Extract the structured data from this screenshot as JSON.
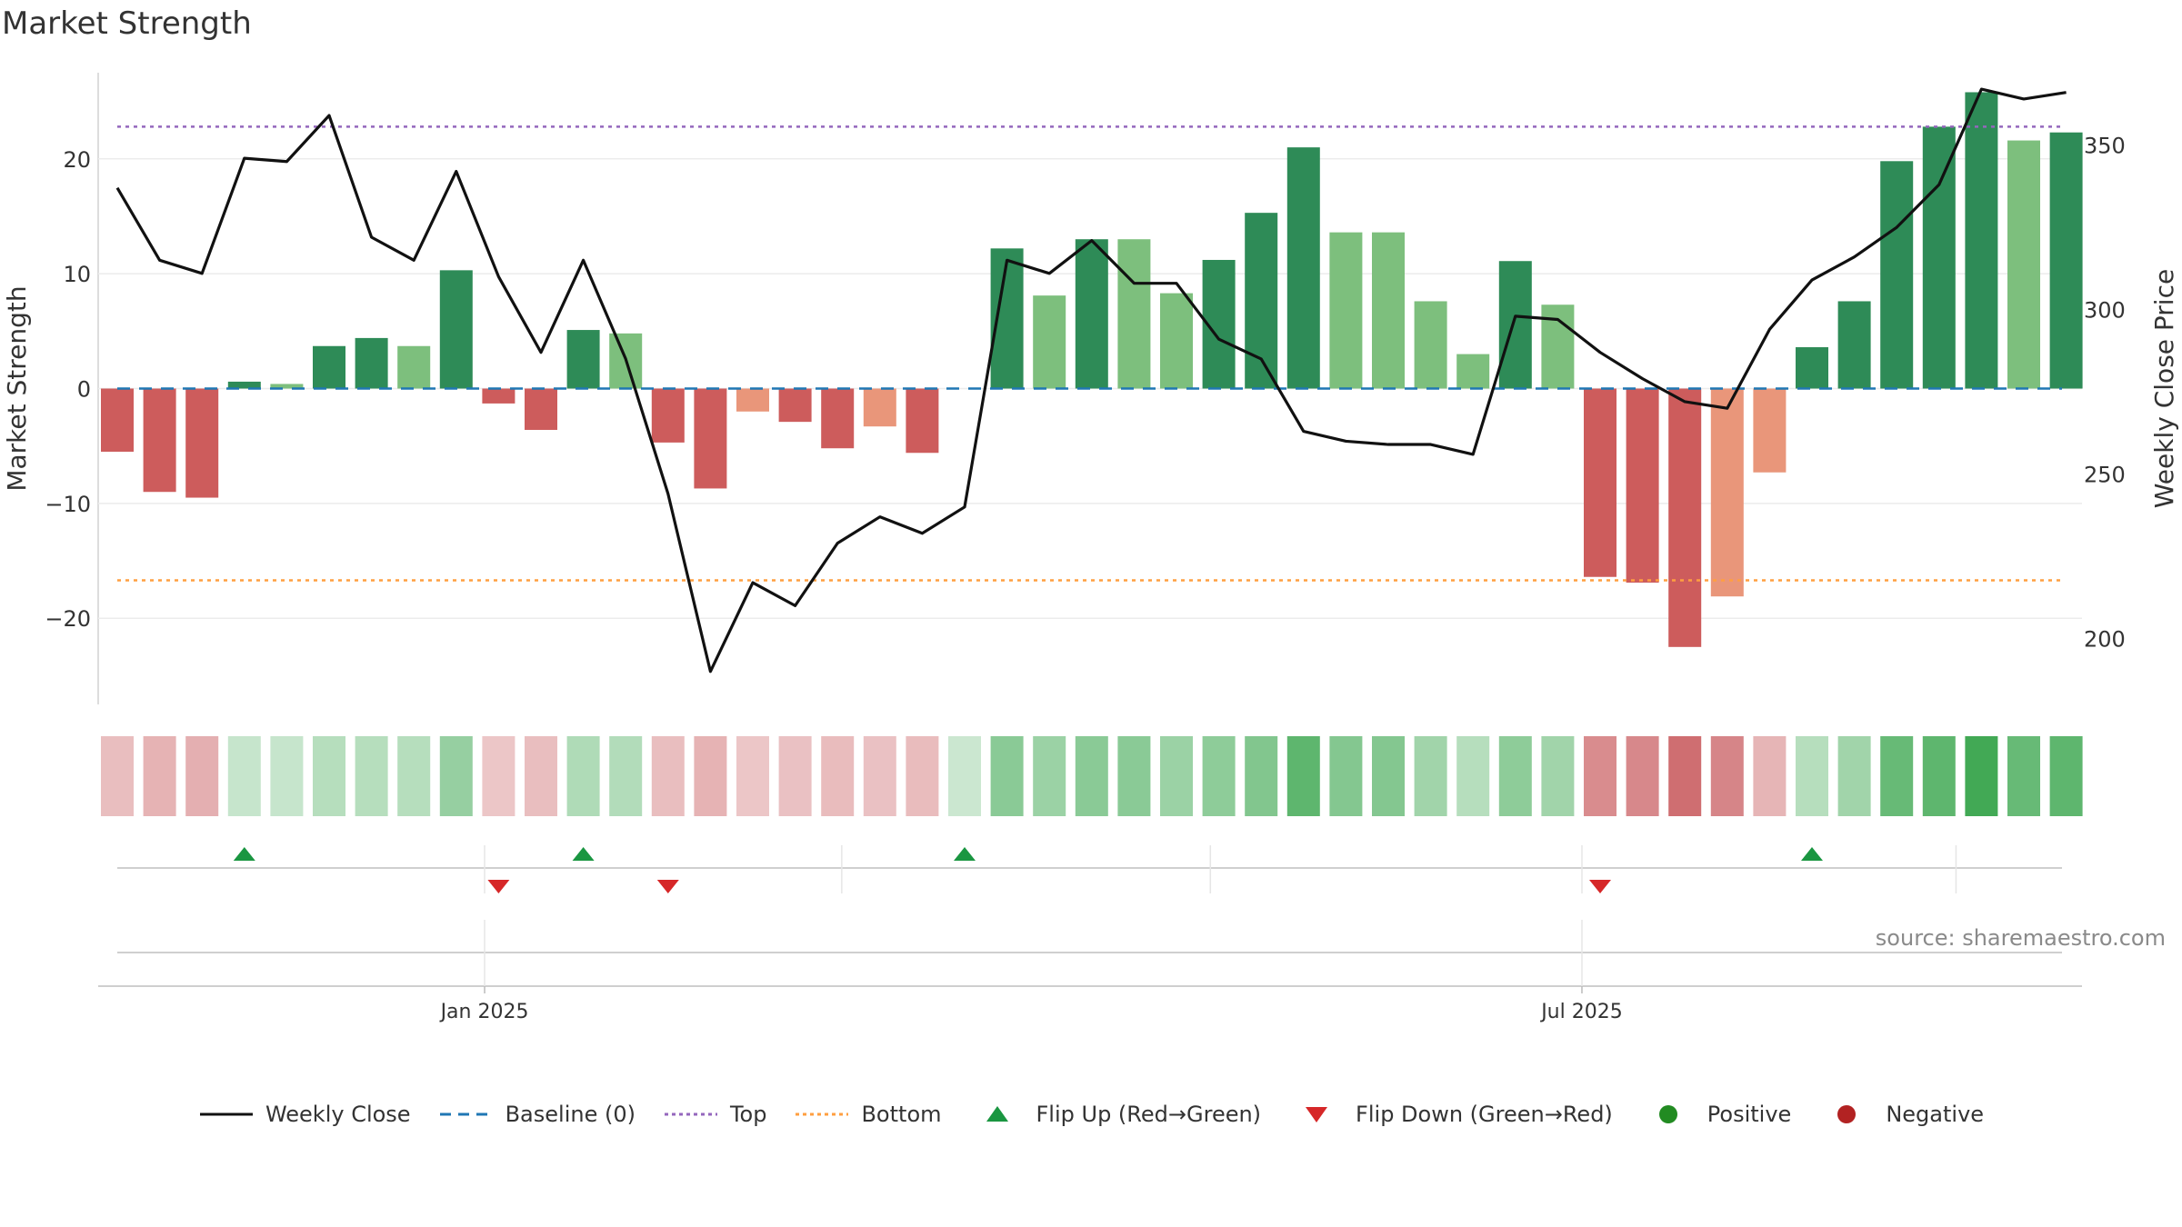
{
  "title": "Market Strength",
  "source": "source: sharemaestro.com",
  "colors": {
    "strong_green": "#2e8b57",
    "light_green": "#7dbf7d",
    "strong_red": "#cd5c5c",
    "light_red": "#e9967a",
    "line": "#111111",
    "baseline": "#1f77b4",
    "top": "#9467bd",
    "bottom": "#ff9f40",
    "flip_up": "#1a9641",
    "flip_down": "#d62728",
    "positive": "#228b22",
    "negative": "#b22222"
  },
  "legend": [
    {
      "key": "line",
      "label": "Weekly Close"
    },
    {
      "key": "baseline",
      "label": "Baseline (0)"
    },
    {
      "key": "top",
      "label": "Top"
    },
    {
      "key": "bottom",
      "label": "Bottom"
    },
    {
      "key": "flip_up",
      "label": "Flip Up (Red→Green)"
    },
    {
      "key": "flip_down",
      "label": "Flip Down (Green→Red)"
    },
    {
      "key": "positive",
      "label": "Positive"
    },
    {
      "key": "negative",
      "label": "Negative"
    }
  ],
  "chart_data": {
    "type": "bar",
    "title": "Market Strength",
    "ylabel": "Market Strength",
    "y2label": "Weekly Close Price",
    "ylim": [
      -27.5,
      27.5
    ],
    "y2lim": [
      180,
      372
    ],
    "yticks": [
      20,
      10,
      0,
      -10,
      -20
    ],
    "ytick_labels": [
      "20",
      "10",
      "0",
      "−10",
      "−20"
    ],
    "y2ticks": [
      350,
      300,
      250,
      200
    ],
    "x_tick_labels": [
      {
        "index": 8.67,
        "label": "Jan 2025"
      },
      {
        "index": 34.57,
        "label": "Jul 2025"
      }
    ],
    "x_minor_grid": [
      8.67,
      17.1,
      25.8,
      34.57,
      43.4
    ],
    "top_level": 22.8,
    "bottom_level": -16.7,
    "baseline": 0,
    "strength": [
      -5.5,
      -9.0,
      -9.5,
      0.6,
      0.4,
      3.7,
      4.4,
      3.7,
      10.3,
      -1.3,
      -3.6,
      5.1,
      4.8,
      -4.7,
      -8.7,
      -2.0,
      -2.9,
      -5.2,
      -3.3,
      -5.6,
      0.0,
      12.2,
      8.1,
      13.0,
      13.0,
      8.3,
      11.2,
      15.3,
      21.0,
      13.6,
      13.6,
      7.6,
      3.0,
      11.1,
      7.3,
      -16.4,
      -16.9,
      -22.5,
      -18.1,
      -7.3,
      3.6,
      7.6,
      19.8,
      22.8,
      25.8,
      21.6,
      22.3
    ],
    "strength_shade": [
      "dark",
      "dark",
      "dark",
      "dark",
      "light",
      "dark",
      "dark",
      "light",
      "dark",
      "dark",
      "dark",
      "dark",
      "light",
      "dark",
      "dark",
      "light",
      "dark",
      "dark",
      "light",
      "dark",
      "light",
      "dark",
      "light",
      "dark",
      "light",
      "light",
      "dark",
      "dark",
      "dark",
      "light",
      "light",
      "light",
      "light",
      "dark",
      "light",
      "dark",
      "dark",
      "dark",
      "light",
      "light",
      "dark",
      "dark",
      "dark",
      "dark",
      "dark",
      "light",
      "dark"
    ],
    "weekly_close": [
      337,
      315,
      311,
      346,
      345,
      359,
      322,
      315,
      342,
      310,
      287,
      315,
      285,
      244,
      190,
      217,
      210,
      229,
      237,
      232,
      240,
      315,
      311,
      321,
      308,
      308,
      291,
      285,
      263,
      260,
      259,
      259,
      256,
      298,
      297,
      287,
      279,
      272,
      270,
      294,
      309,
      316,
      325,
      338,
      367,
      364,
      366
    ],
    "heat_strip": [
      -0.22,
      -0.3,
      -0.32,
      0.1,
      0.1,
      0.2,
      0.2,
      0.2,
      0.38,
      -0.16,
      -0.22,
      0.24,
      0.22,
      -0.22,
      -0.3,
      -0.16,
      -0.2,
      -0.24,
      -0.2,
      -0.24,
      0.08,
      0.45,
      0.35,
      0.45,
      0.45,
      0.35,
      0.42,
      0.5,
      0.7,
      0.48,
      0.48,
      0.32,
      0.2,
      0.42,
      0.32,
      -0.55,
      -0.58,
      -0.75,
      -0.6,
      -0.28,
      0.2,
      0.32,
      0.65,
      0.7,
      0.85,
      0.65,
      0.7
    ],
    "flip_up_indices": [
      3,
      11,
      20,
      40
    ],
    "flip_down_indices": [
      9,
      13,
      35
    ]
  }
}
